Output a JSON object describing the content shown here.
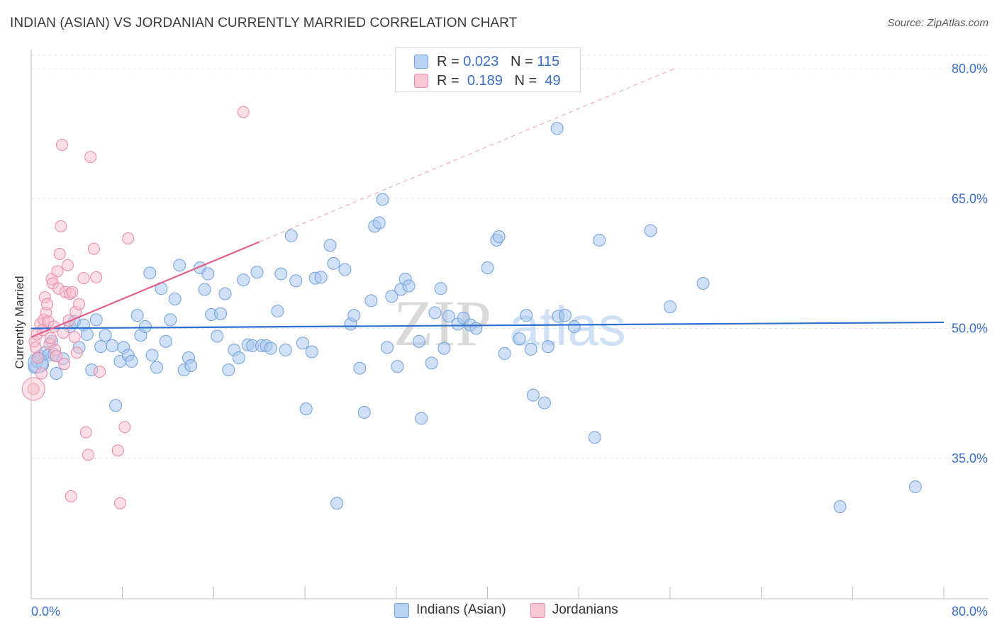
{
  "title": "INDIAN (ASIAN) VS JORDANIAN CURRENTLY MARRIED CORRELATION CHART",
  "source": "Source: ZipAtlas.com",
  "colors": {
    "blue_fill": "#a9c8f0",
    "blue_stroke": "#6f9fdc",
    "blue_line": "#2e6fcf",
    "pink_fill": "#f7bccd",
    "pink_stroke": "#e888a6",
    "pink_line": "#e0608a",
    "axis_text": "#3a6fc7",
    "grid": "#e3e3e3"
  },
  "legend": {
    "rows": [
      {
        "r_label": "R =",
        "r_value": "0.023",
        "n_label": "N =",
        "n_value": "115"
      },
      {
        "r_label": "R =",
        "r_value": "0.189",
        "n_label": "N =",
        "n_value": "49"
      }
    ]
  },
  "chart_data": {
    "type": "scatter",
    "title": "INDIAN (ASIAN) VS JORDANIAN CURRENTLY MARRIED CORRELATION CHART",
    "xlabel": "",
    "ylabel": "Currently Married",
    "xlim": [
      0,
      80
    ],
    "ylim": [
      20,
      82
    ],
    "x_tick_labels": [
      "0.0%",
      "80.0%"
    ],
    "y_ticks": [
      35,
      50,
      65,
      80
    ],
    "y_tick_labels": [
      "35.0%",
      "50.0%",
      "65.0%",
      "80.0%"
    ],
    "grid": "horizontal dashed",
    "legend_placement": "top-center",
    "watermark": "ZIPatlas",
    "series": [
      {
        "name": "Indians (Asian)",
        "R": 0.023,
        "N": 115,
        "trend": {
          "x": [
            0,
            80
          ],
          "y": [
            50.0,
            50.7
          ]
        },
        "points": [
          [
            0.3,
            45.5
          ],
          [
            0.5,
            46.2
          ],
          [
            0.8,
            46.8
          ],
          [
            1.0,
            45.8
          ],
          [
            1.2,
            47.2
          ],
          [
            1.5,
            46.9
          ],
          [
            1.8,
            48.5
          ],
          [
            2.0,
            47.0
          ],
          [
            2.2,
            44.8
          ],
          [
            2.8,
            46.5
          ],
          [
            3.4,
            50.2
          ],
          [
            3.8,
            50.8
          ],
          [
            4.2,
            47.8
          ],
          [
            4.6,
            50.4
          ],
          [
            4.9,
            49.3
          ],
          [
            5.3,
            45.2
          ],
          [
            5.7,
            51.0
          ],
          [
            6.1,
            47.9
          ],
          [
            6.5,
            49.2
          ],
          [
            7.1,
            48.0
          ],
          [
            7.4,
            41.1
          ],
          [
            7.8,
            46.2
          ],
          [
            8.1,
            47.8
          ],
          [
            8.5,
            46.9
          ],
          [
            8.8,
            46.2
          ],
          [
            9.3,
            51.5
          ],
          [
            9.6,
            49.2
          ],
          [
            10.0,
            50.2
          ],
          [
            10.4,
            56.4
          ],
          [
            10.6,
            46.9
          ],
          [
            11.0,
            45.5
          ],
          [
            11.4,
            54.6
          ],
          [
            11.8,
            48.5
          ],
          [
            12.2,
            51.0
          ],
          [
            12.6,
            53.4
          ],
          [
            13.0,
            57.3
          ],
          [
            13.4,
            45.2
          ],
          [
            13.8,
            46.6
          ],
          [
            14.0,
            45.7
          ],
          [
            14.8,
            57.0
          ],
          [
            15.2,
            54.5
          ],
          [
            15.5,
            56.3
          ],
          [
            15.8,
            51.6
          ],
          [
            16.3,
            49.1
          ],
          [
            16.6,
            51.7
          ],
          [
            17.0,
            54.0
          ],
          [
            17.3,
            45.2
          ],
          [
            17.8,
            47.5
          ],
          [
            18.2,
            46.6
          ],
          [
            18.6,
            55.6
          ],
          [
            19.0,
            48.1
          ],
          [
            19.4,
            48.0
          ],
          [
            19.8,
            56.5
          ],
          [
            20.2,
            48.0
          ],
          [
            20.6,
            48.0
          ],
          [
            21.0,
            47.7
          ],
          [
            21.6,
            52.0
          ],
          [
            21.9,
            56.3
          ],
          [
            22.3,
            47.5
          ],
          [
            22.8,
            60.7
          ],
          [
            23.2,
            55.5
          ],
          [
            23.8,
            48.3
          ],
          [
            24.1,
            40.7
          ],
          [
            24.6,
            47.3
          ],
          [
            24.9,
            55.8
          ],
          [
            25.4,
            55.9
          ],
          [
            26.2,
            59.6
          ],
          [
            26.5,
            57.5
          ],
          [
            26.8,
            29.8
          ],
          [
            27.5,
            56.8
          ],
          [
            28.0,
            50.5
          ],
          [
            28.3,
            51.5
          ],
          [
            28.8,
            45.4
          ],
          [
            29.2,
            40.3
          ],
          [
            29.8,
            53.2
          ],
          [
            30.1,
            61.8
          ],
          [
            30.5,
            62.2
          ],
          [
            30.8,
            64.9
          ],
          [
            31.2,
            47.8
          ],
          [
            31.6,
            53.7
          ],
          [
            32.1,
            45.6
          ],
          [
            32.4,
            54.5
          ],
          [
            32.8,
            55.7
          ],
          [
            33.1,
            54.9
          ],
          [
            34.0,
            48.5
          ],
          [
            34.2,
            39.6
          ],
          [
            35.1,
            46.0
          ],
          [
            35.4,
            51.8
          ],
          [
            35.9,
            54.6
          ],
          [
            36.2,
            47.7
          ],
          [
            36.6,
            51.4
          ],
          [
            37.4,
            50.5
          ],
          [
            37.9,
            51.2
          ],
          [
            38.5,
            50.4
          ],
          [
            39.0,
            50.0
          ],
          [
            40.0,
            57.0
          ],
          [
            40.8,
            60.2
          ],
          [
            41.0,
            60.6
          ],
          [
            41.5,
            47.1
          ],
          [
            42.8,
            48.8
          ],
          [
            43.4,
            51.5
          ],
          [
            43.8,
            47.6
          ],
          [
            44.0,
            42.3
          ],
          [
            45.0,
            41.4
          ],
          [
            45.3,
            47.9
          ],
          [
            46.2,
            51.4
          ],
          [
            46.8,
            51.5
          ],
          [
            46.1,
            73.1
          ],
          [
            47.6,
            50.2
          ],
          [
            49.4,
            37.4
          ],
          [
            49.8,
            60.2
          ],
          [
            54.3,
            61.3
          ],
          [
            56.0,
            52.5
          ],
          [
            58.9,
            55.2
          ],
          [
            70.9,
            29.4
          ],
          [
            77.5,
            31.7
          ]
        ]
      },
      {
        "name": "Jordanians",
        "R": 0.189,
        "N": 49,
        "trend": {
          "x": [
            0,
            20
          ],
          "y": [
            49.0,
            60.0
          ]
        },
        "points": [
          [
            0.2,
            43.0
          ],
          [
            0.3,
            48.5
          ],
          [
            0.5,
            49.3
          ],
          [
            0.8,
            50.5
          ],
          [
            0.9,
            44.8
          ],
          [
            1.0,
            49.8
          ],
          [
            1.1,
            51.0
          ],
          [
            1.2,
            53.6
          ],
          [
            1.3,
            51.8
          ],
          [
            1.4,
            52.8
          ],
          [
            1.5,
            50.8
          ],
          [
            1.6,
            48.2
          ],
          [
            1.8,
            55.7
          ],
          [
            1.9,
            55.2
          ],
          [
            2.0,
            50.2
          ],
          [
            2.1,
            47.5
          ],
          [
            2.2,
            46.8
          ],
          [
            2.3,
            56.6
          ],
          [
            2.4,
            54.6
          ],
          [
            2.5,
            58.6
          ],
          [
            2.6,
            61.8
          ],
          [
            2.7,
            71.2
          ],
          [
            2.8,
            49.5
          ],
          [
            3.0,
            54.2
          ],
          [
            3.2,
            57.3
          ],
          [
            3.4,
            54.0
          ],
          [
            3.5,
            30.6
          ],
          [
            3.6,
            54.2
          ],
          [
            3.8,
            49.0
          ],
          [
            3.9,
            51.9
          ],
          [
            4.2,
            52.8
          ],
          [
            4.6,
            55.8
          ],
          [
            4.8,
            38.0
          ],
          [
            5.0,
            35.4
          ],
          [
            5.2,
            69.8
          ],
          [
            5.5,
            59.2
          ],
          [
            5.7,
            55.9
          ],
          [
            6.0,
            45.0
          ],
          [
            7.6,
            35.9
          ],
          [
            7.8,
            29.8
          ],
          [
            8.2,
            38.6
          ],
          [
            8.5,
            60.4
          ],
          [
            18.6,
            75.0
          ],
          [
            0.4,
            47.8
          ],
          [
            0.6,
            46.6
          ],
          [
            1.7,
            48.9
          ],
          [
            2.9,
            45.9
          ],
          [
            3.3,
            50.9
          ],
          [
            4.0,
            47.2
          ]
        ]
      }
    ]
  },
  "bottom_legend": {
    "items": [
      {
        "label": "Indians (Asian)"
      },
      {
        "label": "Jordanians"
      }
    ]
  },
  "watermark": {
    "zip": "ZIP",
    "atlas": "atlas"
  }
}
